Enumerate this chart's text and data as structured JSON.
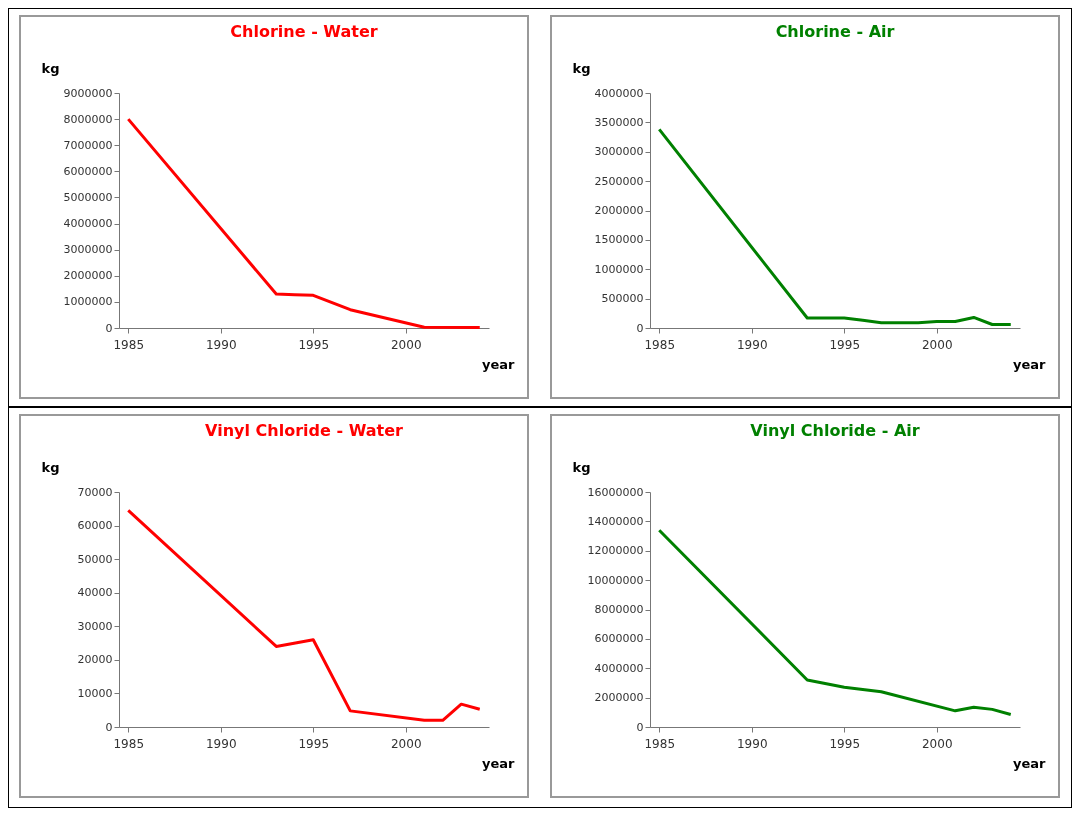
{
  "chart_data": [
    {
      "type": "line",
      "title": "Chlorine - Water",
      "xlabel": "year",
      "ylabel": "kg",
      "xlim": [
        1984.5,
        2004.5
      ],
      "xticks": [
        1985,
        1990,
        1995,
        2000
      ],
      "ylim": [
        0,
        9000000
      ],
      "yticks": [
        0,
        1000000,
        2000000,
        3000000,
        4000000,
        5000000,
        6000000,
        7000000,
        8000000,
        9000000
      ],
      "grid": false,
      "series": [
        {
          "color": "#ff0000",
          "x": [
            1985,
            1993,
            1994,
            1995,
            1997,
            2001,
            2004
          ],
          "values": [
            8000000,
            1300000,
            1270000,
            1250000,
            700000,
            30000,
            20000
          ]
        }
      ]
    },
    {
      "type": "line",
      "title": "Chlorine - Air",
      "xlabel": "year",
      "ylabel": "kg",
      "xlim": [
        1984.5,
        2004.5
      ],
      "xticks": [
        1985,
        1990,
        1995,
        2000
      ],
      "ylim": [
        0,
        4000000
      ],
      "yticks": [
        0,
        500000,
        1000000,
        1500000,
        2000000,
        2500000,
        3000000,
        3500000,
        4000000
      ],
      "grid": false,
      "series": [
        {
          "color": "#008000",
          "x": [
            1985,
            1993,
            1995,
            1996,
            1997,
            1999,
            2000,
            2001,
            2002,
            2003,
            2004
          ],
          "values": [
            3380000,
            170000,
            170000,
            130000,
            90000,
            90000,
            110000,
            110000,
            180000,
            60000,
            60000
          ]
        }
      ]
    },
    {
      "type": "line",
      "title": "Vinyl Chloride - Water",
      "xlabel": "year",
      "ylabel": "kg",
      "xlim": [
        1984.5,
        2004.5
      ],
      "xticks": [
        1985,
        1990,
        1995,
        2000
      ],
      "ylim": [
        0,
        70000
      ],
      "yticks": [
        0,
        10000,
        20000,
        30000,
        40000,
        50000,
        60000,
        70000
      ],
      "grid": false,
      "series": [
        {
          "color": "#ff0000",
          "x": [
            1985,
            1993,
            1995,
            1997,
            2001,
            2002,
            2003,
            2004
          ],
          "values": [
            64500,
            24000,
            26000,
            4800,
            2000,
            2000,
            6800,
            5300
          ]
        }
      ]
    },
    {
      "type": "line",
      "title": "Vinyl Chloride - Air",
      "xlabel": "year",
      "ylabel": "kg",
      "xlim": [
        1984.5,
        2004.5
      ],
      "xticks": [
        1985,
        1990,
        1995,
        2000
      ],
      "ylim": [
        0,
        16000000
      ],
      "yticks": [
        0,
        2000000,
        4000000,
        6000000,
        8000000,
        10000000,
        12000000,
        14000000,
        16000000
      ],
      "grid": false,
      "series": [
        {
          "color": "#008000",
          "x": [
            1985,
            1993,
            1995,
            1997,
            2001,
            2002,
            2003,
            2004
          ],
          "values": [
            13400000,
            3200000,
            2700000,
            2400000,
            1100000,
            1350000,
            1200000,
            850000
          ]
        }
      ]
    }
  ]
}
